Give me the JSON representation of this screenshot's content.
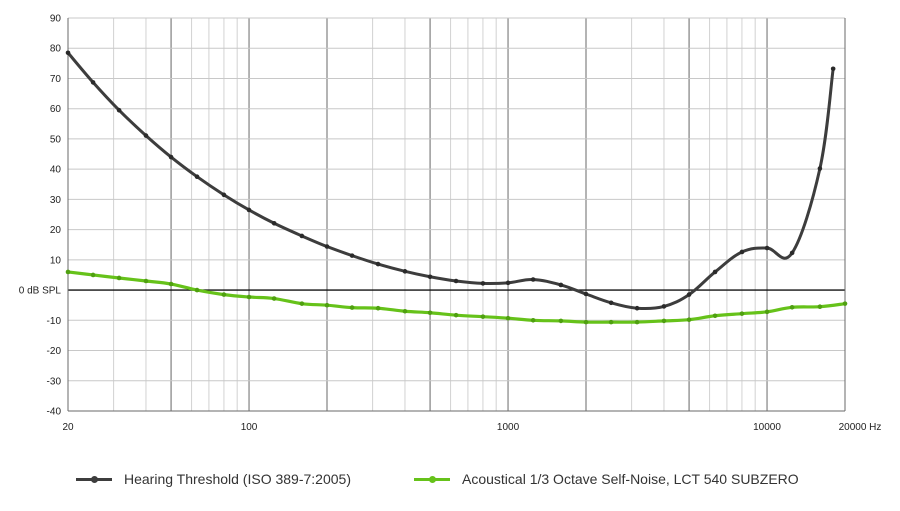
{
  "chart_data": {
    "type": "line",
    "x_scale": "log",
    "xlim": [
      20,
      20000
    ],
    "ylim": [
      -40,
      90
    ],
    "y_ticks": [
      90,
      80,
      70,
      60,
      50,
      40,
      30,
      20,
      10,
      0,
      -10,
      -20,
      -30,
      -40
    ],
    "y_tick_labels": [
      "90",
      "80",
      "70",
      "60",
      "50",
      "40",
      "30",
      "20",
      "10",
      "0 dB SPL",
      "-10",
      "-20",
      "-30",
      "-40"
    ],
    "x_ticks": [
      20,
      100,
      1000,
      10000,
      20000
    ],
    "x_tick_labels": [
      "20",
      "100",
      "1000",
      "10000",
      "20000 Hz"
    ],
    "grid": true,
    "legend_position": "bottom",
    "series": [
      {
        "name": "Hearing Threshold (ISO 389-7:2005)",
        "color": "#3d3d3d",
        "x": [
          20,
          25,
          31.5,
          40,
          50,
          63,
          80,
          100,
          125,
          160,
          200,
          250,
          315,
          400,
          500,
          630,
          800,
          1000,
          1250,
          1600,
          2000,
          2500,
          3150,
          4000,
          5000,
          6300,
          8000,
          10000,
          12500,
          16000,
          18000
        ],
        "y": [
          78.5,
          68.7,
          59.5,
          51.1,
          44.0,
          37.5,
          31.5,
          26.5,
          22.1,
          17.9,
          14.4,
          11.4,
          8.6,
          6.2,
          4.4,
          3.0,
          2.2,
          2.4,
          3.5,
          1.7,
          -1.3,
          -4.2,
          -6.0,
          -5.4,
          -1.5,
          6.0,
          12.6,
          13.9,
          12.3,
          40.2,
          73.2
        ]
      },
      {
        "name": "Acoustical 1/3 Octave Self-Noise, LCT 540 SUBZERO",
        "color": "#66c21a",
        "x": [
          20,
          25,
          31.5,
          40,
          50,
          63,
          80,
          100,
          125,
          160,
          200,
          250,
          315,
          400,
          500,
          630,
          800,
          1000,
          1250,
          1600,
          2000,
          2500,
          3150,
          4000,
          5000,
          6300,
          8000,
          10000,
          12500,
          16000,
          20000
        ],
        "y": [
          6.0,
          5.0,
          4.0,
          3.0,
          2.0,
          0.0,
          -1.5,
          -2.3,
          -2.8,
          -4.5,
          -5.0,
          -5.8,
          -6.0,
          -7.0,
          -7.5,
          -8.3,
          -8.8,
          -9.3,
          -10.0,
          -10.2,
          -10.6,
          -10.6,
          -10.6,
          -10.2,
          -9.8,
          -8.5,
          -7.8,
          -7.2,
          -5.7,
          -5.5,
          -4.5
        ]
      }
    ]
  },
  "legend": {
    "hearing_label": "Hearing Threshold (ISO 389-7:2005)",
    "selfnoise_label": "Acoustical 1/3 Octave Self-Noise, LCT 540 SUBZERO"
  }
}
